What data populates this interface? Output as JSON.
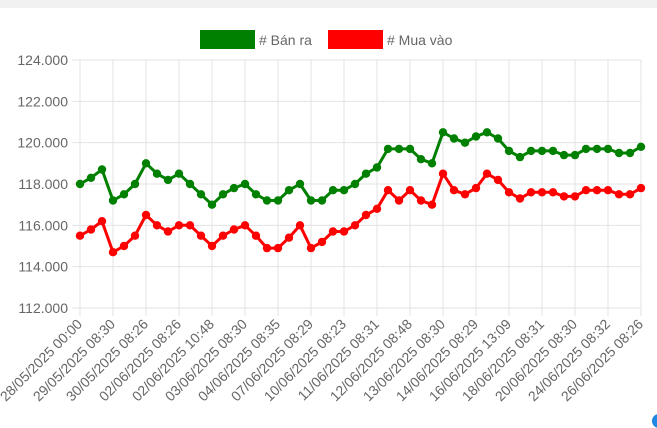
{
  "chart_data": {
    "type": "line",
    "title": "",
    "xlabel": "",
    "ylabel": "",
    "ylim": [
      112000,
      124000
    ],
    "y_ticks": [
      "112.000",
      "114.000",
      "116.000",
      "118.000",
      "120.000",
      "122.000",
      "124.000"
    ],
    "grid": true,
    "legend_position": "top-center",
    "x_tick_labels": [
      "28/05/2025 00:00",
      "29/05/2025 08:30",
      "30/05/2025 08:26",
      "02/06/2025 08:26",
      "02/06/2025 10:48",
      "03/06/2025 08:30",
      "04/06/2025 08:35",
      "07/06/2025 08:29",
      "10/06/2025 08:23",
      "11/06/2025 08:31",
      "12/06/2025 08:48",
      "13/06/2025 08:30",
      "14/06/2025 08:29",
      "16/06/2025 13:09",
      "18/06/2025 08:31",
      "20/06/2025 08:30",
      "24/06/2025 08:32",
      "26/06/2025 08:26"
    ],
    "series": [
      {
        "name": "# Bán ra",
        "color": "#008000",
        "values": [
          118000,
          118300,
          118700,
          117200,
          117500,
          118000,
          119000,
          118500,
          118200,
          118500,
          118000,
          117500,
          117000,
          117500,
          117800,
          118000,
          117500,
          117200,
          117200,
          117700,
          118000,
          117200,
          117200,
          117700,
          117700,
          118000,
          118500,
          118800,
          119700,
          119700,
          119700,
          119200,
          119000,
          120500,
          120200,
          120000,
          120300,
          120500,
          120200,
          119600,
          119300,
          119600,
          119600,
          119600,
          119400,
          119400,
          119700,
          119700,
          119700,
          119500,
          119500,
          119800
        ]
      },
      {
        "name": "# Mua vào",
        "color": "#ff0000",
        "values": [
          115500,
          115800,
          116200,
          114700,
          115000,
          115500,
          116500,
          116000,
          115700,
          116000,
          116000,
          115500,
          115000,
          115500,
          115800,
          116000,
          115500,
          114900,
          114900,
          115400,
          116000,
          114900,
          115200,
          115700,
          115700,
          116000,
          116500,
          116800,
          117700,
          117200,
          117700,
          117200,
          117000,
          118500,
          117700,
          117500,
          117800,
          118500,
          118200,
          117600,
          117300,
          117600,
          117600,
          117600,
          117400,
          117400,
          117700,
          117700,
          117700,
          117500,
          117500,
          117800
        ]
      }
    ]
  }
}
